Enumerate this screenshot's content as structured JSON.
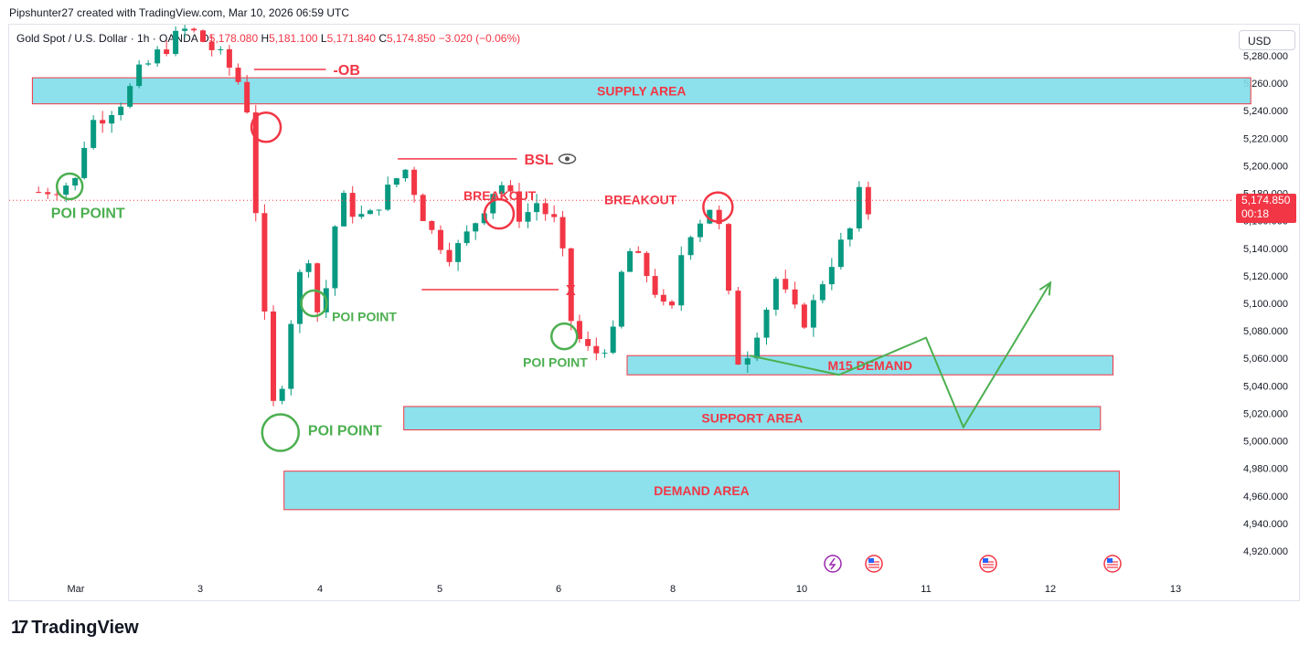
{
  "credit": "Pipshunter27 created with TradingView.com, Mar 10, 2026 06:59 UTC",
  "symbol": {
    "name": "Gold Spot / U.S. Dollar · 1h · OANDA",
    "o_label": "O",
    "o": "5,178.080",
    "h_label": "H",
    "h": "5,181.100",
    "l_label": "L",
    "l": "5,171.840",
    "c_label": "C",
    "c": "5,174.850",
    "change": "−3.020 (−0.06%)"
  },
  "currency": "USD",
  "last_price": {
    "value": "5,174.850",
    "countdown": "00:18"
  },
  "brand": "TradingView",
  "colors": {
    "up": "#089981",
    "down": "#f23645",
    "zone_fill": "#80deea",
    "zone_border": "#f23645",
    "annotation_red": "#f23645",
    "annotation_green": "#4caf50",
    "projection": "#4caf50"
  },
  "chart_data": {
    "type": "candlestick",
    "timeframe": "1h",
    "ylim": [
      4905,
      5290
    ],
    "y_ticks": [
      "5,280.000",
      "5,260.000",
      "5,240.000",
      "5,220.000",
      "5,200.000",
      "5,180.000",
      "5,160.000",
      "5,140.000",
      "5,120.000",
      "5,100.000",
      "5,080.000",
      "5,060.000",
      "5,040.000",
      "5,020.000",
      "5,000.000",
      "4,980.000",
      "4,960.000",
      "4,940.000",
      "4,920.000"
    ],
    "x_ticks": [
      {
        "label": "Mar",
        "day": 0
      },
      {
        "label": "3",
        "day": 1
      },
      {
        "label": "4",
        "day": 2
      },
      {
        "label": "5",
        "day": 3
      },
      {
        "label": "6",
        "day": 4
      },
      {
        "label": "8",
        "day": 5
      },
      {
        "label": "10",
        "day": 6
      },
      {
        "label": "11",
        "day": 7
      },
      {
        "label": "12",
        "day": 8
      },
      {
        "label": "13",
        "day": 9
      }
    ],
    "price_path": [
      [
        -0.3,
        5181
      ],
      [
        0.0,
        5189
      ],
      [
        0.1,
        5230
      ],
      [
        0.2,
        5236
      ],
      [
        0.4,
        5250
      ],
      [
        0.5,
        5266
      ],
      [
        0.7,
        5285
      ],
      [
        0.9,
        5300
      ],
      [
        1.1,
        5285
      ],
      [
        1.3,
        5266
      ],
      [
        1.4,
        5240
      ],
      [
        1.45,
        5180
      ],
      [
        1.5,
        5140
      ],
      [
        1.55,
        5070
      ],
      [
        1.6,
        5030
      ],
      [
        1.65,
        5010
      ],
      [
        1.7,
        5060
      ],
      [
        1.8,
        5110
      ],
      [
        1.9,
        5140
      ],
      [
        1.95,
        5100
      ],
      [
        2.0,
        5090
      ],
      [
        2.05,
        5110
      ],
      [
        2.1,
        5150
      ],
      [
        2.2,
        5175
      ],
      [
        2.3,
        5165
      ],
      [
        2.4,
        5160
      ],
      [
        2.5,
        5175
      ],
      [
        2.6,
        5185
      ],
      [
        2.7,
        5200
      ],
      [
        2.8,
        5180
      ],
      [
        2.9,
        5155
      ],
      [
        3.0,
        5145
      ],
      [
        3.1,
        5135
      ],
      [
        3.2,
        5145
      ],
      [
        3.3,
        5160
      ],
      [
        3.4,
        5175
      ],
      [
        3.5,
        5190
      ],
      [
        3.6,
        5175
      ],
      [
        3.7,
        5160
      ],
      [
        3.8,
        5175
      ],
      [
        3.9,
        5165
      ],
      [
        4.0,
        5155
      ],
      [
        4.05,
        5125
      ],
      [
        4.1,
        5090
      ],
      [
        4.2,
        5070
      ],
      [
        4.3,
        5062
      ],
      [
        4.4,
        5070
      ],
      [
        4.5,
        5078
      ],
      [
        4.55,
        5120
      ],
      [
        4.6,
        5140
      ],
      [
        4.7,
        5130
      ],
      [
        4.8,
        5118
      ],
      [
        4.9,
        5100
      ],
      [
        4.95,
        5088
      ],
      [
        5.0,
        5095
      ],
      [
        5.05,
        5130
      ],
      [
        5.1,
        5150
      ],
      [
        5.2,
        5160
      ],
      [
        5.3,
        5172
      ],
      [
        5.35,
        5160
      ],
      [
        5.4,
        5130
      ],
      [
        5.45,
        5090
      ],
      [
        5.5,
        5060
      ],
      [
        5.55,
        5055
      ],
      [
        5.6,
        5072
      ],
      [
        5.7,
        5090
      ],
      [
        5.8,
        5118
      ],
      [
        5.9,
        5100
      ],
      [
        6.0,
        5085
      ],
      [
        6.1,
        5100
      ],
      [
        6.2,
        5125
      ],
      [
        6.3,
        5140
      ],
      [
        6.4,
        5155
      ],
      [
        6.45,
        5180
      ],
      [
        6.5,
        5172
      ],
      [
        6.55,
        5165
      ]
    ],
    "last_price": 5174.85,
    "annotations": [
      {
        "type": "zone",
        "label": "SUPPLY AREA",
        "top": 5264,
        "bottom": 5245,
        "x0": -0.35,
        "x1": 9.6
      },
      {
        "type": "zone",
        "label": "M15 DEMAND",
        "top": 5062,
        "bottom": 5048,
        "x0": 4.6,
        "x1": 8.5
      },
      {
        "type": "zone",
        "label": "SUPPORT AREA",
        "top": 5025,
        "bottom": 5008,
        "x0": 2.7,
        "x1": 8.4
      },
      {
        "type": "zone",
        "label": "DEMAND AREA",
        "top": 4978,
        "bottom": 4950,
        "x0": 1.7,
        "x1": 8.55
      },
      {
        "type": "level",
        "label": "-OB",
        "y": 5270,
        "x0": 1.45,
        "x1": 2.05
      },
      {
        "type": "level",
        "label": "BSL",
        "y": 5205,
        "x0": 2.65,
        "x1": 3.65
      },
      {
        "type": "level",
        "label": "X",
        "y": 5110,
        "x0": 2.85,
        "x1": 4.0
      },
      {
        "type": "text",
        "label": "BREAKOUT",
        "x": 3.2,
        "y": 5175,
        "tone": "red"
      },
      {
        "type": "text",
        "label": "BREAKOUT",
        "x": 4.4,
        "y": 5172,
        "tone": "red"
      },
      {
        "type": "circle",
        "x": 1.55,
        "y": 5228,
        "tone": "red"
      },
      {
        "type": "circle",
        "x": 3.5,
        "y": 5165,
        "tone": "red"
      },
      {
        "type": "circle",
        "x": 5.35,
        "y": 5170,
        "tone": "red"
      },
      {
        "type": "circle",
        "x": -0.05,
        "y": 5185,
        "tone": "green"
      },
      {
        "type": "circle",
        "x": 1.95,
        "y": 5100,
        "tone": "green"
      },
      {
        "type": "circle",
        "x": 1.67,
        "y": 5006,
        "tone": "green"
      },
      {
        "type": "circle",
        "x": 4.05,
        "y": 5076,
        "tone": "green"
      },
      {
        "type": "text",
        "label": "POI POINT",
        "x": -0.2,
        "y": 5162,
        "tone": "green"
      },
      {
        "type": "text",
        "label": "POI POINT",
        "x": 2.1,
        "y": 5087,
        "tone": "green"
      },
      {
        "type": "text",
        "label": "POI POINT",
        "x": 3.7,
        "y": 5054,
        "tone": "green"
      },
      {
        "type": "text",
        "label": "POI POINT",
        "x": 1.9,
        "y": 5004,
        "tone": "green"
      }
    ],
    "projection_path": [
      [
        5.6,
        5062
      ],
      [
        6.3,
        5048
      ],
      [
        7.0,
        5075
      ],
      [
        7.3,
        5010
      ],
      [
        8.0,
        5115
      ]
    ],
    "event_icons": [
      "flash-icon",
      "us-flag-icon",
      "us-flag-icon",
      "us-flag-icon"
    ]
  }
}
